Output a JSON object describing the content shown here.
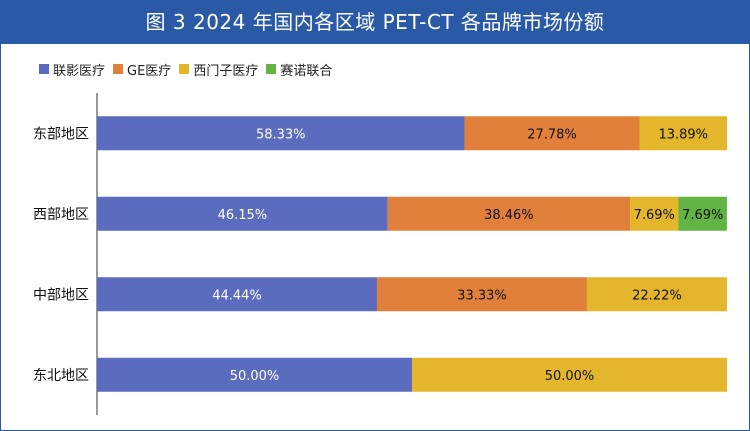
{
  "title": "图 3  2024 年国内各区域 PET-CT 各品牌市场份额",
  "colors": {
    "title_bg": "#2a5aa6",
    "title_text": "#ffffff"
  },
  "chart_data": {
    "type": "bar",
    "orientation": "horizontal",
    "stacked": true,
    "percent": true,
    "categories": [
      "东部地区",
      "西部地区",
      "中部地区",
      "东北地区"
    ],
    "series": [
      {
        "name": "联影医疗",
        "color": "#5b6bbd",
        "label_color": "#ffffff",
        "values": [
          58.33,
          46.15,
          44.44,
          50.0
        ],
        "labels": [
          "58.33%",
          "46.15%",
          "44.44%",
          "50.00%"
        ]
      },
      {
        "name": "GE医疗",
        "color": "#e0803a",
        "label_color": "#111111",
        "values": [
          27.78,
          38.46,
          33.33,
          0
        ],
        "labels": [
          "27.78%",
          "38.46%",
          "33.33%",
          ""
        ]
      },
      {
        "name": "西门子医疗",
        "color": "#e3b62b",
        "label_color": "#111111",
        "values": [
          13.89,
          7.69,
          22.22,
          50.0
        ],
        "labels": [
          "13.89%",
          "7.69%",
          "22.22%",
          "50.00%"
        ]
      },
      {
        "name": "赛诺联合",
        "color": "#62b544",
        "label_color": "#111111",
        "values": [
          0,
          7.69,
          0,
          0
        ],
        "labels": [
          "",
          "7.69%",
          "",
          ""
        ]
      }
    ],
    "xlim": [
      0,
      100
    ],
    "grid": false,
    "legend_position": "top-left"
  }
}
